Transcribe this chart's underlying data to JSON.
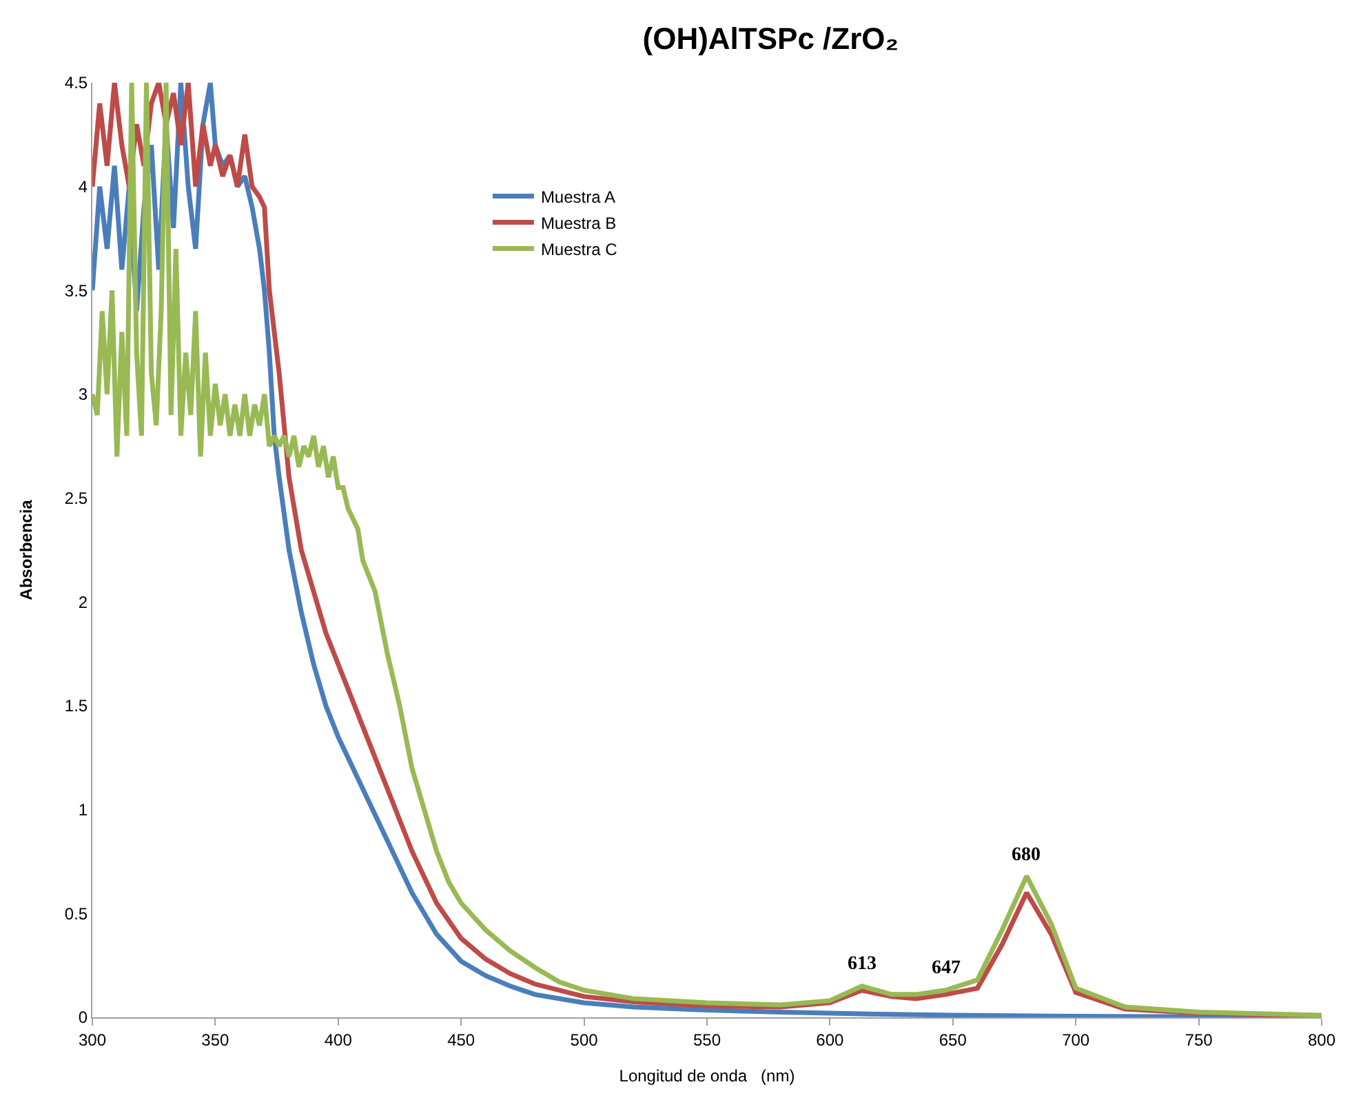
{
  "chart_data": {
    "type": "line",
    "title": "(OH)AlTSPc /ZrO₂",
    "xlabel": "Longitud de onda   (nm)",
    "ylabel": "Absorbencia",
    "xlim": [
      300,
      800
    ],
    "xticks": [
      300,
      350,
      400,
      450,
      500,
      550,
      600,
      650,
      700,
      750,
      800
    ],
    "ylim": [
      0,
      4.5
    ],
    "yticks": [
      0,
      0.5,
      1,
      1.5,
      2,
      2.5,
      3,
      3.5,
      4,
      4.5
    ],
    "legend": "top",
    "line_style": "solid",
    "annotations": [
      {
        "text": "613",
        "x": 613,
        "y": 0.15
      },
      {
        "text": "647",
        "x": 647,
        "y": 0.13
      },
      {
        "text": "680",
        "x": 680,
        "y": 0.68
      }
    ],
    "series": [
      {
        "name": "Muestra A",
        "color": "#4a7ebb",
        "x": [
          300,
          303,
          306,
          309,
          312,
          315,
          318,
          321,
          324,
          327,
          330,
          333,
          336,
          339,
          342,
          345,
          348,
          350,
          353,
          356,
          359,
          362,
          365,
          368,
          370,
          372,
          374,
          376,
          380,
          385,
          390,
          395,
          400,
          410,
          420,
          430,
          440,
          450,
          460,
          470,
          480,
          500,
          520,
          550,
          580,
          600,
          620,
          650,
          700,
          800
        ],
        "values": [
          3.5,
          4.0,
          3.7,
          4.1,
          3.6,
          4.0,
          3.4,
          3.9,
          4.2,
          3.6,
          4.3,
          3.8,
          4.5,
          4.0,
          3.7,
          4.3,
          4.5,
          4.2,
          4.1,
          4.15,
          4.0,
          4.05,
          3.9,
          3.7,
          3.5,
          3.2,
          2.8,
          2.6,
          2.25,
          1.95,
          1.7,
          1.5,
          1.35,
          1.1,
          0.85,
          0.6,
          0.4,
          0.27,
          0.2,
          0.15,
          0.11,
          0.07,
          0.05,
          0.035,
          0.025,
          0.02,
          0.015,
          0.01,
          0.005,
          0
        ]
      },
      {
        "name": "Muestra B",
        "color": "#be4b48",
        "x": [
          300,
          303,
          306,
          309,
          312,
          315,
          318,
          321,
          324,
          327,
          330,
          333,
          336,
          339,
          342,
          345,
          348,
          350,
          353,
          356,
          359,
          362,
          365,
          368,
          370,
          372,
          374,
          376,
          378,
          380,
          385,
          390,
          395,
          400,
          410,
          420,
          430,
          440,
          450,
          460,
          470,
          480,
          500,
          520,
          550,
          580,
          600,
          613,
          625,
          635,
          647,
          660,
          670,
          680,
          690,
          700,
          720,
          750,
          800
        ],
        "values": [
          4.0,
          4.4,
          4.1,
          4.5,
          4.2,
          4.0,
          4.3,
          4.1,
          4.4,
          4.5,
          4.3,
          4.45,
          4.2,
          4.5,
          4.0,
          4.3,
          4.1,
          4.2,
          4.05,
          4.15,
          4.0,
          4.25,
          4.0,
          3.95,
          3.9,
          3.5,
          3.3,
          3.1,
          2.85,
          2.6,
          2.25,
          2.05,
          1.85,
          1.7,
          1.4,
          1.1,
          0.8,
          0.55,
          0.38,
          0.28,
          0.21,
          0.16,
          0.1,
          0.075,
          0.055,
          0.05,
          0.07,
          0.13,
          0.1,
          0.09,
          0.11,
          0.14,
          0.35,
          0.6,
          0.4,
          0.12,
          0.04,
          0.02,
          0.005
        ]
      },
      {
        "name": "Muestra C",
        "color": "#98b954",
        "x": [
          300,
          302,
          304,
          306,
          308,
          310,
          312,
          314,
          316,
          318,
          320,
          322,
          324,
          326,
          328,
          330,
          332,
          334,
          336,
          338,
          340,
          342,
          344,
          346,
          348,
          350,
          352,
          354,
          356,
          358,
          360,
          362,
          364,
          366,
          368,
          370,
          372,
          374,
          376,
          378,
          380,
          382,
          384,
          386,
          388,
          390,
          392,
          394,
          396,
          398,
          400,
          402,
          404,
          406,
          408,
          410,
          415,
          420,
          425,
          430,
          435,
          440,
          445,
          450,
          460,
          470,
          480,
          490,
          500,
          520,
          550,
          580,
          600,
          613,
          625,
          635,
          647,
          660,
          670,
          680,
          690,
          700,
          720,
          750,
          800
        ],
        "values": [
          3.0,
          2.9,
          3.4,
          3.0,
          3.5,
          2.7,
          3.3,
          2.8,
          4.5,
          3.2,
          2.8,
          4.5,
          3.1,
          2.85,
          3.4,
          4.5,
          2.9,
          3.7,
          2.8,
          3.2,
          2.9,
          3.4,
          2.7,
          3.2,
          2.8,
          3.05,
          2.85,
          3.0,
          2.8,
          2.95,
          2.8,
          3.0,
          2.8,
          2.95,
          2.85,
          3.0,
          2.75,
          2.8,
          2.75,
          2.8,
          2.7,
          2.8,
          2.65,
          2.75,
          2.7,
          2.8,
          2.65,
          2.75,
          2.6,
          2.7,
          2.55,
          2.55,
          2.45,
          2.4,
          2.35,
          2.2,
          2.05,
          1.75,
          1.5,
          1.2,
          1.0,
          0.8,
          0.65,
          0.55,
          0.42,
          0.32,
          0.24,
          0.17,
          0.13,
          0.09,
          0.07,
          0.06,
          0.08,
          0.15,
          0.11,
          0.11,
          0.13,
          0.18,
          0.42,
          0.68,
          0.45,
          0.14,
          0.05,
          0.025,
          0.01
        ]
      }
    ]
  }
}
